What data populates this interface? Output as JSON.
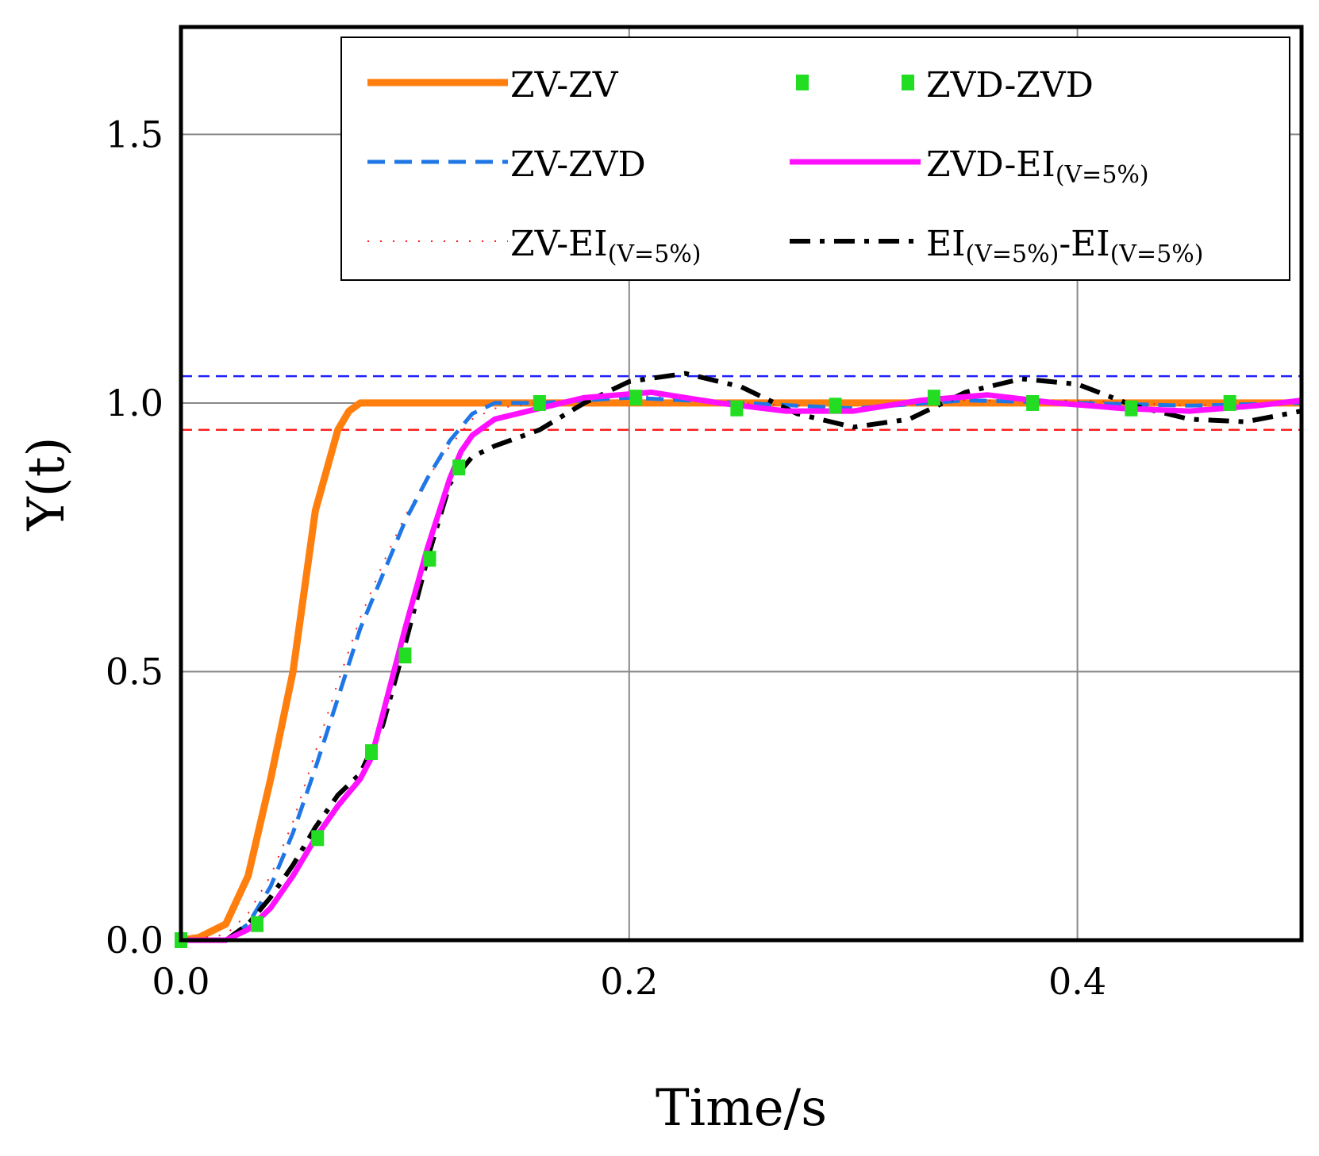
{
  "chart_data": {
    "type": "line",
    "title": "",
    "xlabel": "Time/s",
    "ylabel": "Y(t)",
    "xlim": [
      0,
      0.5
    ],
    "ylim": [
      0,
      1.7
    ],
    "xticks": [
      "0.0",
      "0.2",
      "0.4"
    ],
    "xtick_values": [
      0,
      0.2,
      0.4
    ],
    "yticks": [
      "0.0",
      "0.5",
      "1.0",
      "1.5"
    ],
    "ytick_values": [
      0,
      0.5,
      1.0,
      1.5
    ],
    "grid": true,
    "legend_position": "top-right",
    "reference_lines": [
      {
        "name": "upper-5pct",
        "y": 1.05,
        "color": "#1f1fff"
      },
      {
        "name": "lower-5pct",
        "y": 0.95,
        "color": "#ff1f1f"
      }
    ],
    "series": [
      {
        "name": "ZV-ZV",
        "label_main": "ZV-ZV",
        "label_sub": "",
        "label_tail": "",
        "color": "#ff7f0e",
        "style": "solid",
        "x": [
          0,
          0.008,
          0.02,
          0.03,
          0.04,
          0.05,
          0.06,
          0.07,
          0.075,
          0.08,
          0.5
        ],
        "y": [
          0,
          0.005,
          0.03,
          0.12,
          0.3,
          0.5,
          0.8,
          0.95,
          0.985,
          1.0,
          1.0
        ]
      },
      {
        "name": "ZV-ZVD",
        "label_main": "ZV-ZVD",
        "label_sub": "",
        "label_tail": "",
        "color": "#1f77e6",
        "style": "dashed",
        "x": [
          0,
          0.02,
          0.03,
          0.04,
          0.05,
          0.06,
          0.07,
          0.08,
          0.09,
          0.1,
          0.11,
          0.12,
          0.13,
          0.14,
          0.16,
          0.2,
          0.25,
          0.3,
          0.35,
          0.4,
          0.45,
          0.5
        ],
        "y": [
          0,
          0.0,
          0.03,
          0.1,
          0.2,
          0.32,
          0.45,
          0.58,
          0.68,
          0.78,
          0.86,
          0.93,
          0.98,
          1.0,
          1.0,
          1.01,
          1.0,
          0.99,
          1.005,
          1.0,
          0.995,
          1.0
        ]
      },
      {
        "name": "ZV-EI(V=5%)",
        "label_main": "ZV-EI",
        "label_sub": "(V=5%)",
        "label_tail": "",
        "color": "#ff2020",
        "style": "dotted",
        "x": [
          0,
          0.02,
          0.03,
          0.04,
          0.05,
          0.06,
          0.07,
          0.08,
          0.09,
          0.1,
          0.11,
          0.12,
          0.13,
          0.14,
          0.16,
          0.2,
          0.25,
          0.3,
          0.35,
          0.4,
          0.45,
          0.5
        ],
        "y": [
          0,
          0.01,
          0.05,
          0.12,
          0.22,
          0.35,
          0.48,
          0.6,
          0.7,
          0.79,
          0.86,
          0.92,
          0.97,
          0.99,
          1.0,
          1.015,
          1.0,
          0.99,
          1.005,
          1.005,
          0.995,
          1.0
        ]
      },
      {
        "name": "ZVD-ZVD",
        "label_main": "ZVD-ZVD",
        "label_sub": "",
        "label_tail": "",
        "color": "#22dd22",
        "style": "square-markers",
        "x": [
          0,
          0.034,
          0.061,
          0.085,
          0.1,
          0.111,
          0.124,
          0.16,
          0.203,
          0.248,
          0.292,
          0.336,
          0.38,
          0.424,
          0.468
        ],
        "y": [
          0,
          0.03,
          0.19,
          0.35,
          0.53,
          0.71,
          0.88,
          1.0,
          1.01,
          0.99,
          0.995,
          1.01,
          1.0,
          0.99,
          1.0
        ]
      },
      {
        "name": "ZVD-EI(V=5%)",
        "label_main": "ZVD-EI",
        "label_sub": "(V=5%)",
        "label_tail": "",
        "color": "#ff10ff",
        "style": "solid",
        "x": [
          0,
          0.02,
          0.03,
          0.04,
          0.05,
          0.06,
          0.07,
          0.08,
          0.085,
          0.09,
          0.1,
          0.11,
          0.12,
          0.125,
          0.13,
          0.14,
          0.16,
          0.18,
          0.21,
          0.24,
          0.27,
          0.3,
          0.33,
          0.36,
          0.39,
          0.42,
          0.45,
          0.48,
          0.5
        ],
        "y": [
          0,
          0.0,
          0.02,
          0.06,
          0.12,
          0.19,
          0.25,
          0.3,
          0.34,
          0.42,
          0.58,
          0.73,
          0.86,
          0.91,
          0.94,
          0.97,
          0.99,
          1.01,
          1.02,
          1.0,
          0.985,
          0.985,
          1.005,
          1.015,
          1.0,
          0.99,
          0.985,
          0.995,
          1.005
        ]
      },
      {
        "name": "EI(V=5%)-EI(V=5%)",
        "label_main": "EI",
        "label_sub": "(V=5%)",
        "label_tail": "-EI",
        "label_sub2": "(V=5%)",
        "color": "#000000",
        "style": "dashdot",
        "x": [
          0,
          0.02,
          0.03,
          0.04,
          0.05,
          0.06,
          0.07,
          0.08,
          0.09,
          0.1,
          0.11,
          0.12,
          0.13,
          0.14,
          0.16,
          0.18,
          0.2,
          0.225,
          0.25,
          0.275,
          0.3,
          0.325,
          0.35,
          0.375,
          0.4,
          0.425,
          0.45,
          0.475,
          0.5
        ],
        "y": [
          0,
          0.0,
          0.03,
          0.08,
          0.14,
          0.21,
          0.27,
          0.31,
          0.4,
          0.55,
          0.71,
          0.85,
          0.9,
          0.92,
          0.95,
          1.0,
          1.04,
          1.055,
          1.03,
          0.98,
          0.955,
          0.97,
          1.02,
          1.045,
          1.035,
          0.995,
          0.97,
          0.965,
          0.985
        ]
      }
    ]
  }
}
